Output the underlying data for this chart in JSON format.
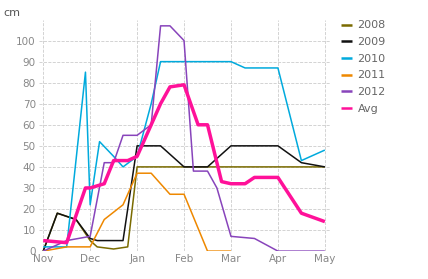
{
  "title": "cm",
  "ylim": [
    0,
    110
  ],
  "yticks": [
    0,
    10,
    20,
    30,
    40,
    50,
    60,
    70,
    80,
    90,
    100
  ],
  "background_color": "#ffffff",
  "series": {
    "2008": {
      "color": "#7a6b00",
      "linewidth": 1.1,
      "x": [
        0,
        0.3,
        0.7,
        1.0,
        1.15,
        1.5,
        1.8,
        2.0,
        2.5,
        3.0,
        3.5,
        4.0,
        4.5,
        5.0,
        5.5,
        6.0
      ],
      "y": [
        0,
        18,
        15,
        5,
        2,
        1,
        2,
        40,
        40,
        40,
        40,
        40,
        40,
        40,
        40,
        40
      ]
    },
    "2009": {
      "color": "#111111",
      "linewidth": 1.1,
      "x": [
        0,
        0.3,
        0.7,
        1.0,
        1.15,
        1.5,
        1.7,
        2.0,
        2.5,
        3.0,
        3.5,
        4.0,
        4.3,
        4.5,
        5.0,
        5.5,
        6.0
      ],
      "y": [
        0,
        18,
        15,
        6,
        5,
        5,
        5,
        50,
        50,
        40,
        40,
        50,
        50,
        50,
        50,
        42,
        40
      ]
    },
    "2010": {
      "color": "#00aadd",
      "linewidth": 1.1,
      "x": [
        0,
        0.5,
        0.9,
        1.0,
        1.2,
        1.5,
        1.7,
        2.0,
        2.3,
        2.5,
        2.8,
        3.0,
        3.3,
        3.5,
        4.0,
        4.3,
        4.5,
        5.0,
        5.5,
        6.0
      ],
      "y": [
        2,
        2,
        85,
        22,
        52,
        45,
        40,
        45,
        70,
        90,
        90,
        90,
        90,
        90,
        90,
        87,
        87,
        87,
        43,
        48
      ]
    },
    "2011": {
      "color": "#ee8800",
      "linewidth": 1.1,
      "x": [
        0,
        0.5,
        1.0,
        1.3,
        1.7,
        2.0,
        2.3,
        2.7,
        3.0,
        3.5,
        4.0
      ],
      "y": [
        0,
        2,
        2,
        15,
        22,
        37,
        37,
        27,
        27,
        0,
        0
      ]
    },
    "2012": {
      "color": "#8844bb",
      "linewidth": 1.1,
      "x": [
        0,
        0.5,
        1.0,
        1.3,
        1.5,
        1.7,
        2.0,
        2.3,
        2.5,
        2.7,
        3.0,
        3.2,
        3.5,
        3.7,
        4.0,
        4.5,
        5.0,
        5.5,
        6.0
      ],
      "y": [
        0,
        5,
        7,
        42,
        42,
        55,
        55,
        60,
        107,
        107,
        100,
        38,
        38,
        30,
        7,
        6,
        0,
        0,
        0
      ]
    },
    "Avg": {
      "color": "#ff1199",
      "linewidth": 2.5,
      "x": [
        0,
        0.5,
        0.9,
        1.0,
        1.3,
        1.5,
        1.8,
        2.0,
        2.5,
        2.7,
        3.0,
        3.3,
        3.5,
        3.8,
        4.0,
        4.3,
        4.5,
        5.0,
        5.5,
        6.0
      ],
      "y": [
        5,
        4,
        30,
        30,
        32,
        43,
        43,
        45,
        70,
        78,
        79,
        60,
        60,
        33,
        32,
        32,
        35,
        35,
        18,
        14
      ]
    }
  },
  "xtick_positions": [
    0,
    1,
    2,
    3,
    4,
    5,
    6
  ],
  "xtick_labels": [
    "Nov",
    "Dec",
    "Jan",
    "Feb",
    "Mar",
    "Apr",
    "May"
  ],
  "legend_order": [
    "2008",
    "2009",
    "2010",
    "2011",
    "2012",
    "Avg"
  ]
}
